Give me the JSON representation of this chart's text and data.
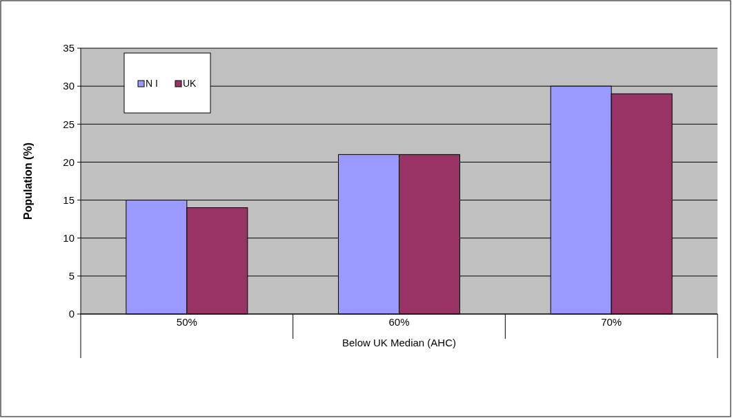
{
  "chart_data": {
    "type": "bar",
    "categories": [
      "50%",
      "60%",
      "70%"
    ],
    "xlabel": "Below UK Median (AHC)",
    "ylabel": "Population (%)",
    "series": [
      {
        "name": "N I",
        "color": "#9999ff",
        "values": [
          15,
          21,
          30
        ]
      },
      {
        "name": "UK",
        "color": "#993366",
        "values": [
          14,
          21,
          29
        ]
      }
    ],
    "ylim": [
      0,
      35
    ],
    "yticks": [
      0,
      5,
      10,
      15,
      20,
      25,
      30,
      35
    ],
    "grid": "y",
    "legend": "top left"
  }
}
